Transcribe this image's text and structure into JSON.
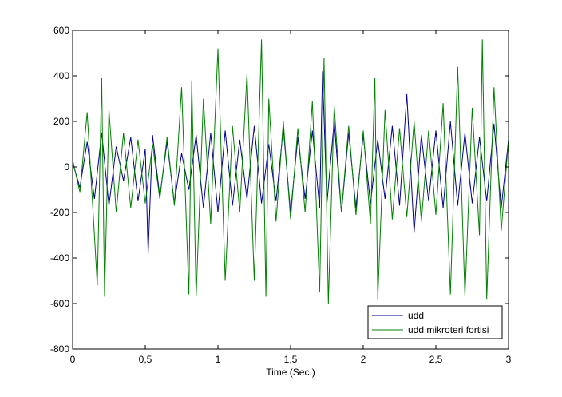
{
  "chart_data": {
    "type": "line",
    "title": "",
    "xlabel": "Time (Sec.)",
    "ylabel": "",
    "xlim": [
      0,
      3
    ],
    "ylim": [
      -800,
      600
    ],
    "grid": false,
    "legend_position": "bottom-right",
    "x_ticks": [
      0,
      0.5,
      1,
      1.5,
      2,
      2.5,
      3
    ],
    "x_tick_labels": [
      "0",
      "0,5",
      "1",
      "1,5",
      "2",
      "2,5",
      "3"
    ],
    "y_ticks": [
      -800,
      -600,
      -400,
      -200,
      0,
      200,
      400,
      600
    ],
    "y_tick_labels": [
      "-800",
      "-600",
      "-400",
      "-200",
      "0",
      "200",
      "400",
      "600"
    ],
    "series": [
      {
        "name": "udd",
        "color": "#00008b",
        "x": [
          0.0,
          0.05,
          0.1,
          0.15,
          0.2,
          0.25,
          0.3,
          0.35,
          0.4,
          0.45,
          0.5,
          0.52,
          0.55,
          0.6,
          0.65,
          0.7,
          0.75,
          0.8,
          0.85,
          0.9,
          0.95,
          1.0,
          1.05,
          1.1,
          1.15,
          1.2,
          1.25,
          1.3,
          1.35,
          1.4,
          1.45,
          1.5,
          1.55,
          1.6,
          1.65,
          1.7,
          1.72,
          1.75,
          1.8,
          1.85,
          1.9,
          1.95,
          2.0,
          2.05,
          2.1,
          2.15,
          2.2,
          2.25,
          2.3,
          2.35,
          2.4,
          2.45,
          2.5,
          2.55,
          2.6,
          2.65,
          2.7,
          2.75,
          2.8,
          2.85,
          2.9,
          2.95,
          3.0
        ],
        "y": [
          20,
          -90,
          110,
          -140,
          150,
          -170,
          90,
          -60,
          130,
          -150,
          80,
          -380,
          140,
          -130,
          110,
          -160,
          60,
          -100,
          140,
          -180,
          150,
          -200,
          160,
          -170,
          120,
          -140,
          180,
          -160,
          100,
          -150,
          170,
          -200,
          130,
          -140,
          160,
          -180,
          420,
          -160,
          200,
          -200,
          150,
          -180,
          140,
          -160,
          120,
          -140,
          180,
          -170,
          320,
          -290,
          140,
          -150,
          160,
          -180,
          200,
          -170,
          150,
          -160,
          130,
          -150,
          190,
          -180,
          120
        ]
      },
      {
        "name": "udd mikroteri fortisi",
        "color": "#008000",
        "x": [
          0.0,
          0.05,
          0.1,
          0.15,
          0.17,
          0.2,
          0.22,
          0.25,
          0.3,
          0.35,
          0.4,
          0.45,
          0.5,
          0.55,
          0.6,
          0.65,
          0.7,
          0.75,
          0.8,
          0.82,
          0.85,
          0.9,
          0.95,
          1.0,
          1.05,
          1.1,
          1.15,
          1.2,
          1.25,
          1.3,
          1.33,
          1.35,
          1.4,
          1.45,
          1.5,
          1.55,
          1.6,
          1.65,
          1.7,
          1.73,
          1.76,
          1.8,
          1.85,
          1.9,
          1.95,
          2.0,
          2.05,
          2.08,
          2.1,
          2.15,
          2.2,
          2.25,
          2.3,
          2.35,
          2.4,
          2.45,
          2.5,
          2.55,
          2.6,
          2.65,
          2.7,
          2.75,
          2.8,
          2.82,
          2.85,
          2.9,
          2.95,
          3.0
        ],
        "y": [
          30,
          -110,
          240,
          -300,
          -520,
          390,
          -570,
          250,
          -200,
          150,
          -180,
          120,
          -160,
          100,
          -140,
          130,
          -170,
          350,
          -560,
          380,
          -570,
          300,
          -250,
          520,
          -500,
          180,
          -200,
          410,
          -500,
          560,
          -570,
          300,
          -240,
          200,
          -230,
          170,
          -200,
          290,
          -550,
          480,
          -600,
          270,
          -200,
          180,
          -210,
          160,
          -250,
          390,
          -580,
          250,
          -230,
          170,
          -220,
          200,
          -240,
          160,
          -210,
          280,
          -560,
          440,
          -570,
          260,
          -300,
          560,
          -580,
          350,
          -280,
          120
        ]
      }
    ]
  }
}
